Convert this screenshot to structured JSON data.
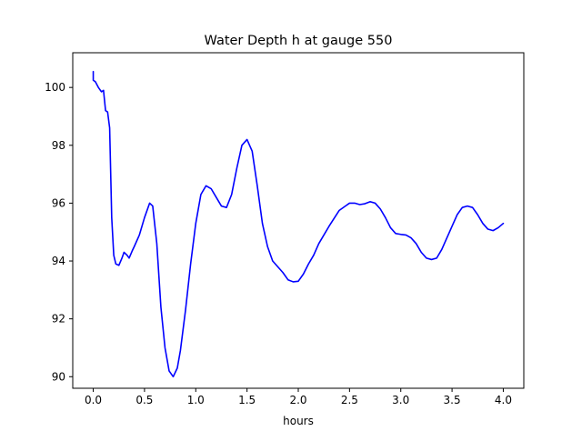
{
  "chart_data": {
    "type": "line",
    "title": "Water Depth h at gauge 550",
    "xlabel": "hours",
    "ylabel": "",
    "xlim": [
      -0.2,
      4.2
    ],
    "ylim": [
      89.6,
      101.2
    ],
    "xticks": [
      0.0,
      0.5,
      1.0,
      1.5,
      2.0,
      2.5,
      3.0,
      3.5,
      4.0
    ],
    "xtick_labels": [
      "0.0",
      "0.5",
      "1.0",
      "1.5",
      "2.0",
      "2.5",
      "3.0",
      "3.5",
      "4.0"
    ],
    "yticks": [
      90,
      92,
      94,
      96,
      98,
      100
    ],
    "ytick_labels": [
      "90",
      "92",
      "94",
      "96",
      "98",
      "100"
    ],
    "grid": false,
    "series": [
      {
        "color": "#0000ff",
        "x": [
          0.0,
          0.0,
          0.02,
          0.05,
          0.08,
          0.1,
          0.12,
          0.14,
          0.16,
          0.18,
          0.2,
          0.22,
          0.25,
          0.28,
          0.3,
          0.33,
          0.35,
          0.38,
          0.4,
          0.45,
          0.5,
          0.55,
          0.58,
          0.62,
          0.66,
          0.7,
          0.74,
          0.78,
          0.82,
          0.85,
          0.9,
          0.95,
          1.0,
          1.05,
          1.1,
          1.15,
          1.2,
          1.25,
          1.3,
          1.35,
          1.4,
          1.45,
          1.5,
          1.55,
          1.6,
          1.65,
          1.7,
          1.75,
          1.8,
          1.85,
          1.9,
          1.95,
          2.0,
          2.05,
          2.1,
          2.15,
          2.2,
          2.3,
          2.4,
          2.5,
          2.55,
          2.6,
          2.65,
          2.7,
          2.75,
          2.8,
          2.85,
          2.9,
          2.95,
          3.0,
          3.05,
          3.1,
          3.15,
          3.2,
          3.25,
          3.3,
          3.35,
          3.4,
          3.45,
          3.5,
          3.55,
          3.6,
          3.65,
          3.7,
          3.75,
          3.8,
          3.85,
          3.9,
          3.95,
          4.0
        ],
        "y": [
          100.55,
          100.25,
          100.2,
          100.0,
          99.85,
          99.9,
          99.2,
          99.15,
          98.6,
          95.5,
          94.2,
          93.9,
          93.85,
          94.1,
          94.3,
          94.2,
          94.1,
          94.35,
          94.5,
          94.9,
          95.5,
          96.0,
          95.9,
          94.6,
          92.4,
          91.0,
          90.2,
          90.0,
          90.3,
          90.9,
          92.3,
          93.9,
          95.3,
          96.3,
          96.6,
          96.5,
          96.2,
          95.9,
          95.85,
          96.3,
          97.2,
          98.0,
          98.2,
          97.8,
          96.6,
          95.3,
          94.5,
          94.0,
          93.8,
          93.6,
          93.35,
          93.28,
          93.3,
          93.55,
          93.9,
          94.2,
          94.6,
          95.2,
          95.75,
          96.0,
          96.0,
          95.95,
          95.98,
          96.05,
          96.0,
          95.8,
          95.5,
          95.15,
          94.95,
          94.92,
          94.9,
          94.8,
          94.6,
          94.3,
          94.1,
          94.05,
          94.1,
          94.4,
          94.8,
          95.2,
          95.6,
          95.85,
          95.9,
          95.85,
          95.6,
          95.3,
          95.1,
          95.05,
          95.15,
          95.3
        ]
      }
    ]
  }
}
